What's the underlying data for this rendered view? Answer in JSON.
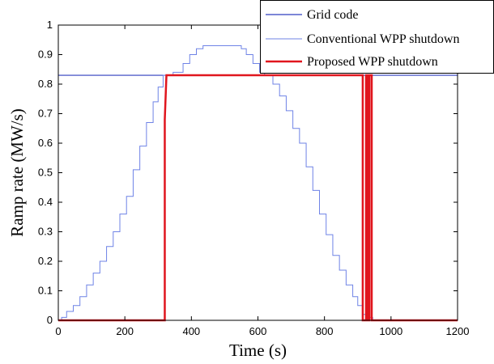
{
  "chart_data": {
    "type": "line",
    "xlabel": "Time (s)",
    "ylabel": "Ramp rate (MW/s)",
    "xlim": [
      0,
      1200
    ],
    "ylim": [
      0,
      1
    ],
    "x_ticks": [
      0,
      200,
      400,
      600,
      800,
      1000,
      1200
    ],
    "y_ticks": [
      0,
      0.1,
      0.2,
      0.3,
      0.4,
      0.5,
      0.6,
      0.7,
      0.8,
      0.9,
      1
    ],
    "y_tick_labels": [
      "0",
      "0.1",
      "0.2",
      "0.3",
      "0.4",
      "0.5",
      "0.6",
      "0.7",
      "0.8",
      "0.9",
      "1"
    ],
    "grid": false,
    "legend_position": "top-right",
    "series": [
      {
        "name": "Grid code",
        "color": "#2f3fbf",
        "width": 1.2,
        "points": [
          [
            0,
            0.83
          ],
          [
            1200,
            0.83
          ]
        ]
      },
      {
        "name": "Conventional WPP shutdown",
        "color": "#6f83e6",
        "width": 1,
        "points": [
          [
            0,
            0.0
          ],
          [
            10,
            0.0
          ],
          [
            10,
            0.01
          ],
          [
            25,
            0.01
          ],
          [
            25,
            0.03
          ],
          [
            45,
            0.03
          ],
          [
            45,
            0.05
          ],
          [
            65,
            0.05
          ],
          [
            65,
            0.08
          ],
          [
            85,
            0.08
          ],
          [
            85,
            0.12
          ],
          [
            105,
            0.12
          ],
          [
            105,
            0.16
          ],
          [
            125,
            0.16
          ],
          [
            125,
            0.2
          ],
          [
            145,
            0.2
          ],
          [
            145,
            0.25
          ],
          [
            165,
            0.25
          ],
          [
            165,
            0.3
          ],
          [
            185,
            0.3
          ],
          [
            185,
            0.36
          ],
          [
            205,
            0.36
          ],
          [
            205,
            0.42
          ],
          [
            225,
            0.42
          ],
          [
            225,
            0.51
          ],
          [
            245,
            0.51
          ],
          [
            245,
            0.59
          ],
          [
            265,
            0.59
          ],
          [
            265,
            0.67
          ],
          [
            285,
            0.67
          ],
          [
            285,
            0.74
          ],
          [
            300,
            0.74
          ],
          [
            300,
            0.79
          ],
          [
            315,
            0.79
          ],
          [
            315,
            0.83
          ],
          [
            345,
            0.83
          ],
          [
            345,
            0.84
          ],
          [
            375,
            0.84
          ],
          [
            375,
            0.87
          ],
          [
            395,
            0.87
          ],
          [
            395,
            0.9
          ],
          [
            415,
            0.9
          ],
          [
            415,
            0.92
          ],
          [
            435,
            0.92
          ],
          [
            435,
            0.93
          ],
          [
            550,
            0.93
          ],
          [
            550,
            0.92
          ],
          [
            565,
            0.92
          ],
          [
            565,
            0.9
          ],
          [
            585,
            0.9
          ],
          [
            585,
            0.87
          ],
          [
            605,
            0.87
          ],
          [
            605,
            0.84
          ],
          [
            620,
            0.84
          ],
          [
            620,
            0.83
          ],
          [
            645,
            0.83
          ],
          [
            645,
            0.8
          ],
          [
            665,
            0.8
          ],
          [
            665,
            0.76
          ],
          [
            685,
            0.76
          ],
          [
            685,
            0.71
          ],
          [
            705,
            0.71
          ],
          [
            705,
            0.65
          ],
          [
            725,
            0.65
          ],
          [
            725,
            0.6
          ],
          [
            745,
            0.6
          ],
          [
            745,
            0.52
          ],
          [
            765,
            0.52
          ],
          [
            765,
            0.44
          ],
          [
            785,
            0.44
          ],
          [
            785,
            0.36
          ],
          [
            805,
            0.36
          ],
          [
            805,
            0.29
          ],
          [
            825,
            0.29
          ],
          [
            825,
            0.22
          ],
          [
            845,
            0.22
          ],
          [
            845,
            0.17
          ],
          [
            865,
            0.17
          ],
          [
            865,
            0.12
          ],
          [
            885,
            0.12
          ],
          [
            885,
            0.08
          ],
          [
            900,
            0.08
          ],
          [
            900,
            0.05
          ],
          [
            915,
            0.05
          ],
          [
            915,
            0.02
          ],
          [
            930,
            0.02
          ],
          [
            930,
            0.01
          ],
          [
            945,
            0.01
          ],
          [
            945,
            0.0
          ],
          [
            1200,
            0.0
          ]
        ]
      },
      {
        "name": "Proposed WPP shutdown",
        "color": "#e0161e",
        "width": 2.5,
        "points": [
          [
            0,
            0.0
          ],
          [
            320,
            0.0
          ],
          [
            320,
            0.68
          ],
          [
            325,
            0.83
          ],
          [
            915,
            0.83
          ],
          [
            915,
            0.0
          ],
          [
            925,
            0.0
          ],
          [
            925,
            0.83
          ],
          [
            930,
            0.83
          ],
          [
            930,
            0.0
          ],
          [
            935,
            0.0
          ],
          [
            935,
            0.83
          ],
          [
            942,
            0.83
          ],
          [
            942,
            0.0
          ],
          [
            1200,
            0.0
          ]
        ]
      }
    ]
  }
}
